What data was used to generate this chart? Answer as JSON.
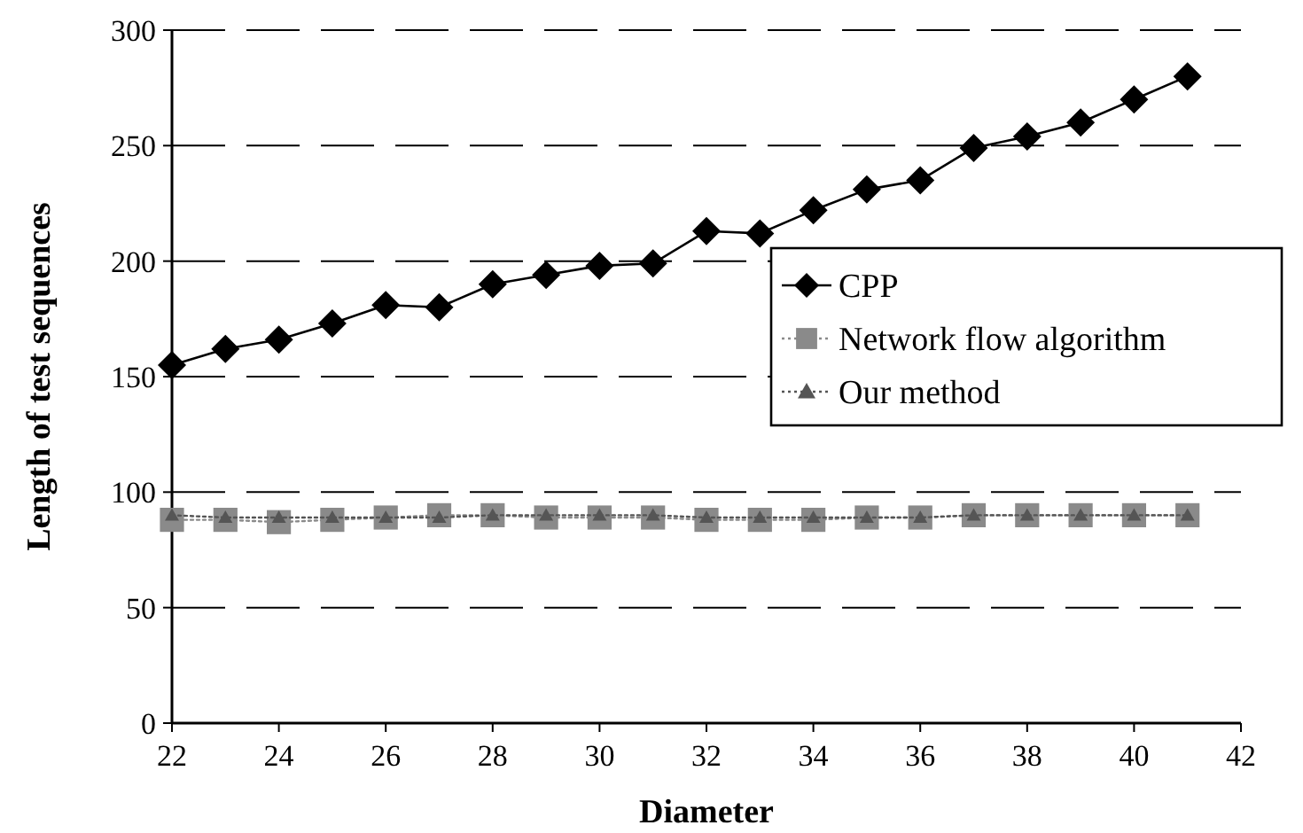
{
  "chart_data": {
    "type": "line",
    "xlabel": "Diameter",
    "ylabel": "Length of test sequences",
    "x": [
      22,
      23,
      24,
      25,
      26,
      27,
      28,
      29,
      30,
      31,
      32,
      33,
      34,
      35,
      36,
      37,
      38,
      39,
      40,
      41
    ],
    "xlim": [
      22,
      42
    ],
    "xticks": [
      22,
      24,
      26,
      28,
      30,
      32,
      34,
      36,
      38,
      40,
      42
    ],
    "ylim": [
      0,
      300
    ],
    "yticks": [
      0,
      50,
      100,
      150,
      200,
      250,
      300
    ],
    "grid": "y",
    "legend": "right",
    "series": [
      {
        "name": "CPP",
        "color": "#000000",
        "marker": "diamond",
        "line_style": "solid",
        "values": [
          155,
          162,
          166,
          173,
          181,
          180,
          190,
          194,
          198,
          199,
          213,
          212,
          222,
          231,
          235,
          249,
          254,
          260,
          270,
          280
        ]
      },
      {
        "name": "Network flow algorithm",
        "color": "#8a8a8a",
        "marker": "square",
        "line_style": "dotted",
        "values": [
          88,
          88,
          87,
          88,
          89,
          90,
          90,
          89,
          89,
          89,
          88,
          88,
          88,
          89,
          89,
          90,
          90,
          90,
          90,
          90
        ]
      },
      {
        "name": "Our method",
        "color": "#555555",
        "marker": "triangle",
        "line_style": "dotted",
        "values": [
          90,
          89,
          89,
          89,
          89,
          89,
          90,
          90,
          90,
          90,
          89,
          89,
          89,
          89,
          89,
          90,
          90,
          90,
          90,
          90
        ]
      }
    ]
  }
}
